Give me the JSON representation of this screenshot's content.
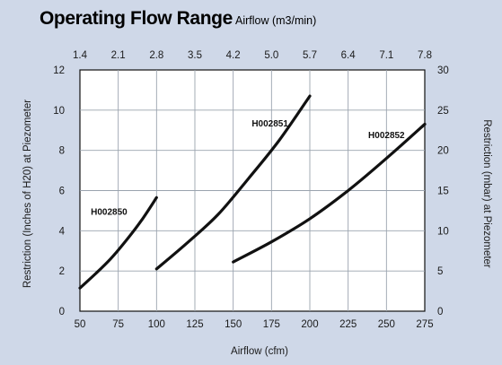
{
  "chart_data": {
    "type": "line",
    "title": "Operating Flow Range",
    "subtitle": "Airflow (m3/min)",
    "xlabel": "Airflow (cfm)",
    "ylabel": "Restriction (Inches of H20) at Piezometer",
    "y2label": "Restriction (mbar) at Piezometer",
    "xlim": [
      50,
      275
    ],
    "ylim": [
      0,
      12
    ],
    "y2lim": [
      0,
      30
    ],
    "x_ticks": [
      "50",
      "75",
      "100",
      "125",
      "150",
      "175",
      "200",
      "225",
      "250",
      "275"
    ],
    "y_ticks": [
      "0",
      "2",
      "4",
      "6",
      "8",
      "10",
      "12"
    ],
    "x2_ticks": [
      "1.4",
      "2.1",
      "2.8",
      "3.5",
      "4.2",
      "5.0",
      "5.7",
      "6.4",
      "7.1",
      "7.8"
    ],
    "y2_ticks": [
      "0",
      "5",
      "10",
      "15",
      "20",
      "25",
      "30"
    ],
    "grid": true,
    "series": [
      {
        "name": "H002850",
        "x": [
          50,
          60,
          70,
          80,
          90,
          100
        ],
        "y": [
          1.15,
          1.85,
          2.6,
          3.5,
          4.5,
          5.65
        ]
      },
      {
        "name": "H002851",
        "x": [
          100,
          120,
          140,
          160,
          180,
          200
        ],
        "y": [
          2.1,
          3.4,
          4.8,
          6.6,
          8.5,
          10.7
        ]
      },
      {
        "name": "H002852",
        "x": [
          150,
          175,
          200,
          225,
          250,
          275
        ],
        "y": [
          2.45,
          3.45,
          4.6,
          6.0,
          7.6,
          9.3
        ]
      }
    ]
  }
}
